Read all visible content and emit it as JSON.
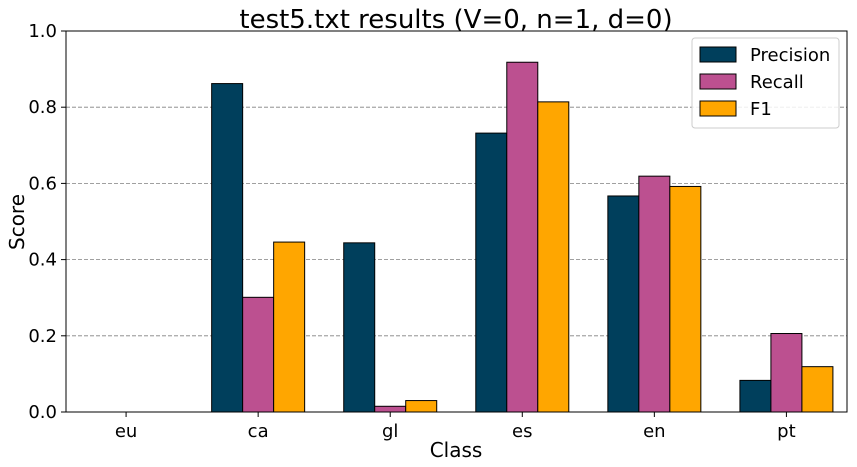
{
  "chart_data": {
    "type": "bar",
    "title": "test5.txt results (V=0, n=1, d=0)",
    "xlabel": "Class",
    "ylabel": "Score",
    "categories": [
      "eu",
      "ca",
      "gl",
      "es",
      "en",
      "pt"
    ],
    "series": [
      {
        "name": "Precision",
        "color": "#003f5c",
        "values": [
          0.0,
          0.862,
          0.444,
          0.732,
          0.567,
          0.083
        ]
      },
      {
        "name": "Recall",
        "color": "#bc5090",
        "values": [
          0.0,
          0.301,
          0.015,
          0.918,
          0.619,
          0.206
        ]
      },
      {
        "name": "F1",
        "color": "#ffa600",
        "values": [
          0.0,
          0.446,
          0.03,
          0.814,
          0.592,
          0.119
        ]
      }
    ],
    "ylim": [
      0,
      1.0
    ],
    "yticks": [
      "0.0",
      "0.2",
      "0.4",
      "0.6",
      "0.8",
      "1.0"
    ],
    "grid": "horizontal dashed",
    "legend_position": "top-right"
  }
}
